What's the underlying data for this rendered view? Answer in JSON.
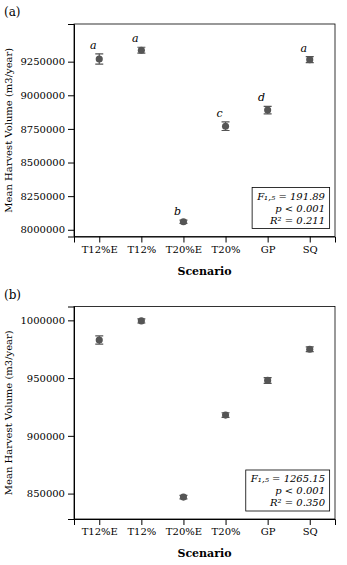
{
  "chart_data": [
    {
      "type": "scatter",
      "title": "(a)",
      "categories": [
        "T12%E",
        "T12%",
        "T20%E",
        "T20%",
        "GP",
        "SQ"
      ],
      "values": [
        9270000,
        9335000,
        8060000,
        8770000,
        8890000,
        9265000
      ],
      "errors": [
        38000,
        22000,
        12000,
        32000,
        28000,
        22000
      ],
      "letters": [
        "a",
        "a",
        "b",
        "c",
        "d",
        "a"
      ],
      "ylim": [
        7950000,
        9530000
      ],
      "yticks": [
        8000000,
        8250000,
        8500000,
        8750000,
        9000000,
        9250000
      ],
      "ylabel": "Mean Harvest Volume (m3/year)",
      "xlabel": "Scenario",
      "stat_text": [
        "F₁,₅ = 191.89",
        "p < 0.001",
        "R² = 0.211"
      ],
      "color": "#555555",
      "marker": "circle",
      "grid": false
    },
    {
      "type": "scatter",
      "title": "(b)",
      "categories": [
        "T12%E",
        "T12%",
        "T20%E",
        "T20%",
        "GP",
        "SQ"
      ],
      "values": [
        983000,
        999500,
        847000,
        918000,
        948000,
        975000
      ],
      "errors": [
        3500,
        1800,
        1500,
        2000,
        2500,
        2000
      ],
      "ylim": [
        828000,
        1012000
      ],
      "yticks": [
        850000,
        900000,
        950000,
        1000000
      ],
      "ylabel": "Mean Harvest Volume (m3/year)",
      "xlabel": "Scenario",
      "stat_text": [
        "F₁,₅ = 1265.15",
        "p < 0.001",
        "R² = 0.350"
      ],
      "color": "#555555",
      "marker": "circle",
      "grid": false
    }
  ]
}
